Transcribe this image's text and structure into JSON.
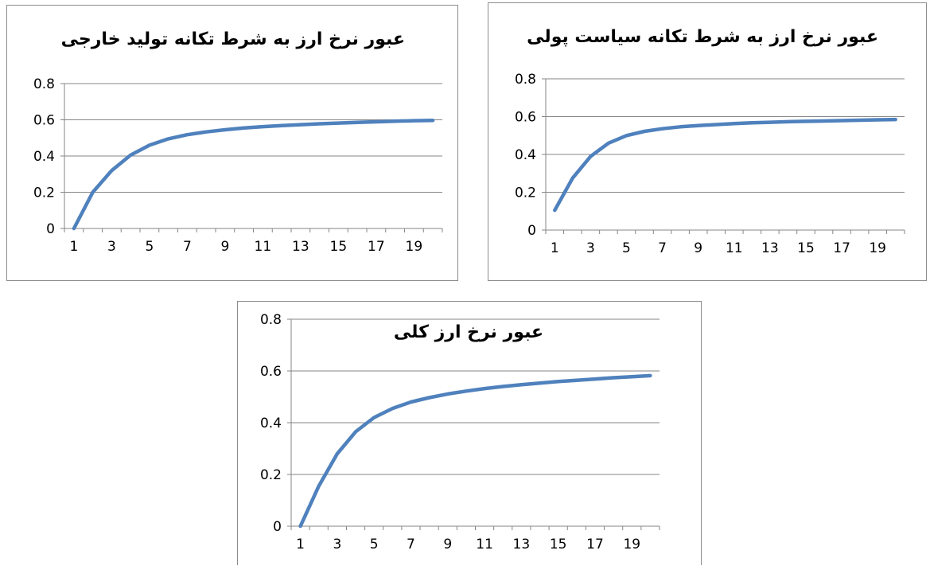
{
  "chart_data": [
    {
      "type": "line",
      "title": "عبور نرخ ارز به شرط تکانه تولید خارجی",
      "xlabel": "",
      "ylabel": "",
      "ylim": [
        0,
        0.8
      ],
      "yticks": [
        "0",
        "0.2",
        "0.4",
        "0.6",
        "0.8"
      ],
      "xtick_labels": [
        "1",
        "3",
        "5",
        "7",
        "9",
        "11",
        "13",
        "15",
        "17",
        "19"
      ],
      "grid": true,
      "color": "#4F81BD",
      "series": [
        {
          "x": [
            1,
            2,
            3,
            4,
            5,
            6,
            7,
            8,
            9,
            10,
            11,
            12,
            13,
            14,
            15,
            16,
            17,
            18,
            19,
            20
          ],
          "values": [
            0.0,
            0.2,
            0.32,
            0.405,
            0.46,
            0.495,
            0.518,
            0.533,
            0.545,
            0.555,
            0.562,
            0.568,
            0.573,
            0.578,
            0.582,
            0.586,
            0.589,
            0.592,
            0.595,
            0.597
          ]
        }
      ]
    },
    {
      "type": "line",
      "title": "عبور نرخ ارز به شرط تکانه سیاست پولی",
      "xlabel": "",
      "ylabel": "",
      "ylim": [
        0,
        0.8
      ],
      "yticks": [
        "0",
        "0.2",
        "0.4",
        "0.6",
        "0.8"
      ],
      "xtick_labels": [
        "1",
        "3",
        "5",
        "7",
        "9",
        "11",
        "13",
        "15",
        "17",
        "19"
      ],
      "grid": true,
      "color": "#4F81BD",
      "series": [
        {
          "x": [
            1,
            2,
            3,
            4,
            5,
            6,
            7,
            8,
            9,
            10,
            11,
            12,
            13,
            14,
            15,
            16,
            17,
            18,
            19,
            20
          ],
          "values": [
            0.105,
            0.275,
            0.39,
            0.46,
            0.5,
            0.522,
            0.536,
            0.546,
            0.553,
            0.558,
            0.563,
            0.567,
            0.57,
            0.573,
            0.575,
            0.577,
            0.579,
            0.581,
            0.583,
            0.585
          ]
        }
      ]
    },
    {
      "type": "line",
      "title": "عبور نرخ ارز کلی",
      "xlabel": "",
      "ylabel": "",
      "ylim": [
        0,
        0.8
      ],
      "yticks": [
        "0",
        "0.2",
        "0.4",
        "0.6",
        "0.8"
      ],
      "xtick_labels": [
        "1",
        "3",
        "5",
        "7",
        "9",
        "11",
        "13",
        "15",
        "17",
        "19"
      ],
      "grid": true,
      "color": "#4F81BD",
      "series": [
        {
          "x": [
            1,
            2,
            3,
            4,
            5,
            6,
            7,
            8,
            9,
            10,
            11,
            12,
            13,
            14,
            15,
            16,
            17,
            18,
            19,
            20
          ],
          "values": [
            0.0,
            0.155,
            0.28,
            0.365,
            0.42,
            0.455,
            0.48,
            0.497,
            0.511,
            0.522,
            0.532,
            0.54,
            0.547,
            0.553,
            0.559,
            0.564,
            0.569,
            0.574,
            0.578,
            0.582
          ]
        }
      ]
    }
  ]
}
